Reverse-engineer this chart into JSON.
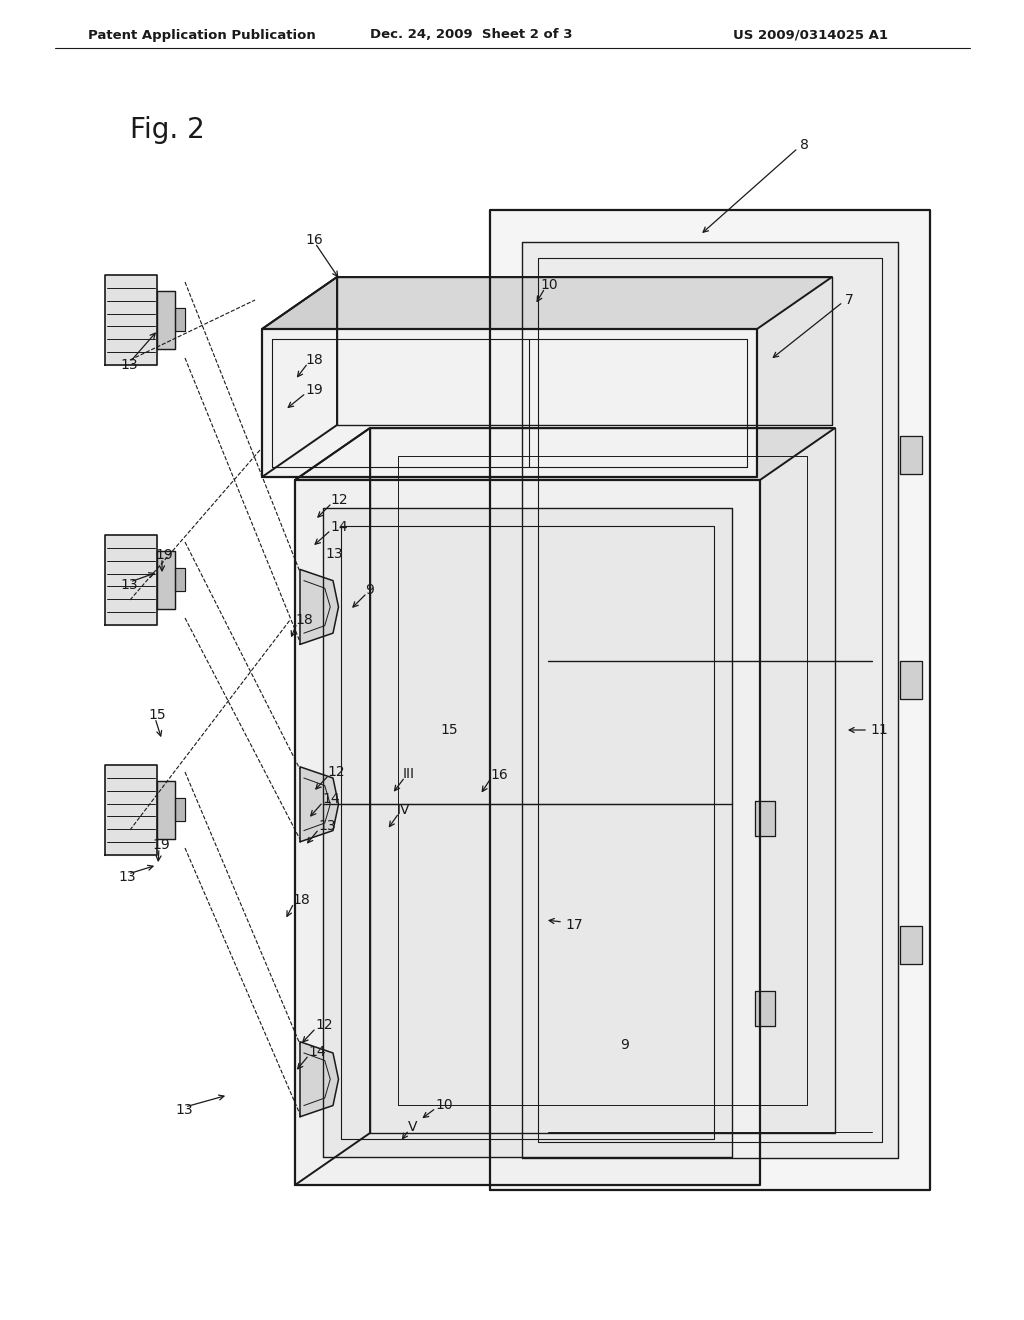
{
  "background_color": "#ffffff",
  "line_color": "#1a1a1a",
  "header_left": "Patent Application Publication",
  "header_center": "Dec. 24, 2009  Sheet 2 of 3",
  "header_right": "US 2009/0314025 A1",
  "fig_label": "Fig. 2",
  "header_fontsize": 9.5,
  "fig_label_fontsize": 20,
  "label_fontsize": 10
}
